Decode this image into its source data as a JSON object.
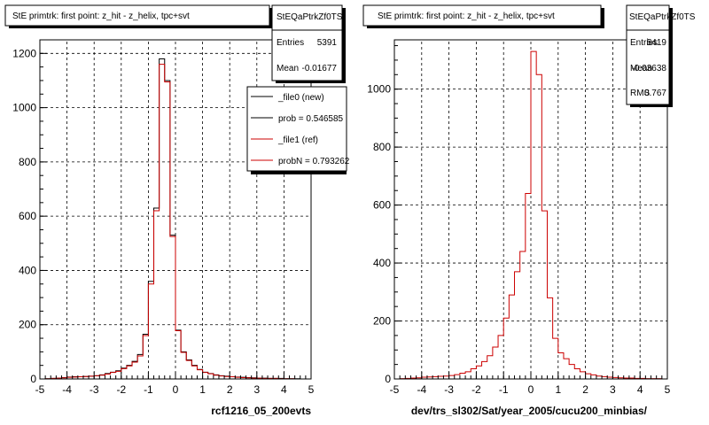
{
  "footer_text": "",
  "chart_data": [
    {
      "type": "histogram",
      "title": "StE primtrk: first point: z_hit - z_helix, tpc+svt",
      "xlabel": "rcf1216_05_200evts",
      "ylabel": "",
      "xlim": [
        -5,
        5
      ],
      "ylim": [
        0,
        1250
      ],
      "x_ticks": [
        "-5",
        "-4",
        "-3",
        "-2",
        "-1",
        "0",
        "1",
        "2",
        "3",
        "4",
        "5"
      ],
      "y_ticks": [
        "0",
        "200",
        "400",
        "600",
        "800",
        "1000",
        "1200"
      ],
      "grid": true,
      "bin_edges": [
        -5.0,
        -4.8,
        -4.6,
        -4.4,
        -4.2,
        -4.0,
        -3.8,
        -3.6,
        -3.4,
        -3.2,
        -3.0,
        -2.8,
        -2.6,
        -2.4,
        -2.2,
        -2.0,
        -1.8,
        -1.6,
        -1.4,
        -1.2,
        -1.0,
        -0.8,
        -0.6,
        -0.4,
        -0.2,
        0.0,
        0.2,
        0.4,
        0.6,
        0.8,
        1.0,
        1.2,
        1.4,
        1.6,
        1.8,
        2.0,
        2.2,
        2.4,
        2.6,
        2.8,
        3.0,
        3.2,
        3.4,
        3.6,
        3.8,
        4.0,
        4.2,
        4.4,
        4.6,
        4.8,
        5.0
      ],
      "series": [
        {
          "name": "_file0 (new)",
          "color": "#000000",
          "values": [
            0,
            1,
            2,
            3,
            5,
            7,
            8,
            8,
            9,
            10,
            12,
            15,
            20,
            25,
            30,
            40,
            50,
            65,
            90,
            165,
            360,
            630,
            1180,
            1100,
            530,
            180,
            100,
            70,
            50,
            35,
            25,
            20,
            15,
            12,
            10,
            8,
            7,
            6,
            5,
            4,
            3,
            3,
            2,
            2,
            2,
            1,
            1,
            1,
            0,
            0
          ]
        },
        {
          "name": "_file1 (ref)",
          "color": "#cc0000",
          "values": [
            0,
            1,
            2,
            3,
            4,
            6,
            7,
            8,
            9,
            10,
            12,
            14,
            18,
            24,
            28,
            38,
            48,
            62,
            85,
            160,
            350,
            620,
            1160,
            1095,
            525,
            178,
            98,
            68,
            48,
            34,
            24,
            19,
            14,
            11,
            9,
            8,
            6,
            5,
            4,
            3,
            3,
            2,
            2,
            2,
            1,
            1,
            1,
            0,
            0,
            0
          ]
        }
      ],
      "stats": {
        "name": "StEQaPtrkZf0TS",
        "entries_label": "Entries",
        "entries": "5391",
        "mean_label": "Mean",
        "mean": "-0.01677"
      },
      "legend": {
        "position": "top-right",
        "entries": [
          {
            "label": "_file0 (new)",
            "color": "#000000"
          },
          {
            "label": "prob = 0.546585",
            "color": "#000000"
          },
          {
            "label": "_file1 (ref)",
            "color": "#cc0000"
          },
          {
            "label": "probN = 0.793262",
            "color": "#cc0000"
          }
        ]
      }
    },
    {
      "type": "histogram",
      "title": "StE primtrk: first point: z_hit - z_helix, tpc+svt",
      "xlabel": "dev/trs_sl302/Sat/year_2005/cucu200_minbias/",
      "ylabel": "",
      "xlim": [
        -5,
        5
      ],
      "ylim": [
        0,
        1170
      ],
      "x_ticks": [
        "-5",
        "-4",
        "-3",
        "-2",
        "-1",
        "0",
        "1",
        "2",
        "3",
        "4",
        "5"
      ],
      "y_ticks": [
        "0",
        "200",
        "400",
        "600",
        "800",
        "1000"
      ],
      "grid": true,
      "bin_edges": [
        -5.0,
        -4.8,
        -4.6,
        -4.4,
        -4.2,
        -4.0,
        -3.8,
        -3.6,
        -3.4,
        -3.2,
        -3.0,
        -2.8,
        -2.6,
        -2.4,
        -2.2,
        -2.0,
        -1.8,
        -1.6,
        -1.4,
        -1.2,
        -1.0,
        -0.8,
        -0.6,
        -0.4,
        -0.2,
        0.0,
        0.2,
        0.4,
        0.6,
        0.8,
        1.0,
        1.2,
        1.4,
        1.6,
        1.8,
        2.0,
        2.2,
        2.4,
        2.6,
        2.8,
        3.0,
        3.2,
        3.4,
        3.6,
        3.8,
        4.0,
        4.2,
        4.4,
        4.6,
        4.8,
        5.0
      ],
      "series": [
        {
          "name": "",
          "color": "#cc0000",
          "values": [
            0,
            1,
            2,
            3,
            4,
            6,
            7,
            8,
            9,
            10,
            12,
            15,
            20,
            25,
            35,
            45,
            60,
            80,
            110,
            150,
            210,
            290,
            370,
            440,
            640,
            1130,
            1050,
            580,
            280,
            140,
            90,
            70,
            50,
            35,
            25,
            18,
            14,
            10,
            8,
            6,
            5,
            4,
            3,
            3,
            2,
            2,
            1,
            1,
            1,
            0
          ]
        }
      ],
      "stats": {
        "name": "StEQaPtrkZf0TS",
        "entries_label": "Entries",
        "entries": "5419",
        "mean_label": "Mean",
        "mean": "-0.03638",
        "rms_label": "RMS",
        "rms": "0.767"
      }
    }
  ]
}
